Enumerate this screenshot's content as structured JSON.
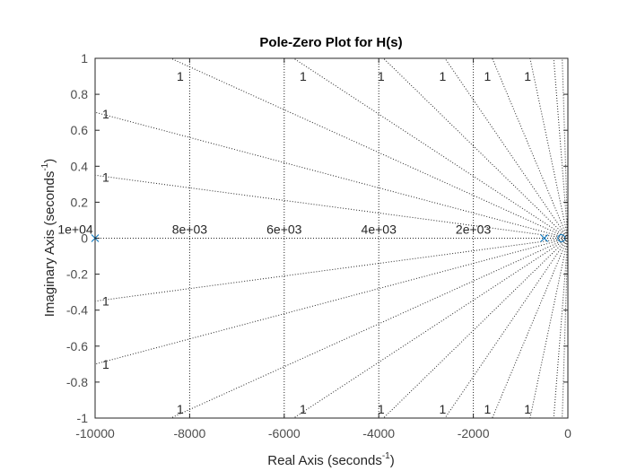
{
  "chart_data": {
    "type": "scatter",
    "title": "Pole-Zero Plot for H(s)",
    "xlabel": "Real Axis (seconds",
    "xlabel_sup": "-1",
    "xlabel_end": ")",
    "ylabel": "Imaginary Axis (seconds",
    "ylabel_sup": "-1",
    "ylabel_end": ")",
    "xlim": [
      -10000,
      0
    ],
    "ylim": [
      -1,
      1
    ],
    "x_ticks": [
      -10000,
      -8000,
      -6000,
      -4000,
      -2000,
      0
    ],
    "x_tick_labels": [
      "-10000",
      "-8000",
      "-6000",
      "-4000",
      "-2000",
      "0"
    ],
    "y_ticks": [
      -1,
      -0.8,
      -0.6,
      -0.4,
      -0.2,
      0,
      0.2,
      0.4,
      0.6,
      0.8,
      1
    ],
    "y_tick_labels": [
      "-1",
      "-0.8",
      "-0.6",
      "-0.4",
      "-0.2",
      "0",
      "0.2",
      "0.4",
      "0.6",
      "0.8",
      "1"
    ],
    "grid": true,
    "poles": [
      {
        "x": -10000,
        "y": 0
      },
      {
        "x": -500,
        "y": 0
      }
    ],
    "zeros": [
      {
        "x": -100,
        "y": 0
      }
    ],
    "frequency_grid": [
      {
        "value": 10000,
        "label": "1e+04"
      },
      {
        "value": 8000,
        "label": "8e+03"
      },
      {
        "value": 6000,
        "label": "6e+03"
      },
      {
        "value": 4000,
        "label": "4e+03"
      },
      {
        "value": 2000,
        "label": "2e+03"
      }
    ],
    "damping_grid_label": "1",
    "colors": {
      "marker": "#0072bd",
      "grid": "#262626",
      "axes": "#262626"
    }
  }
}
